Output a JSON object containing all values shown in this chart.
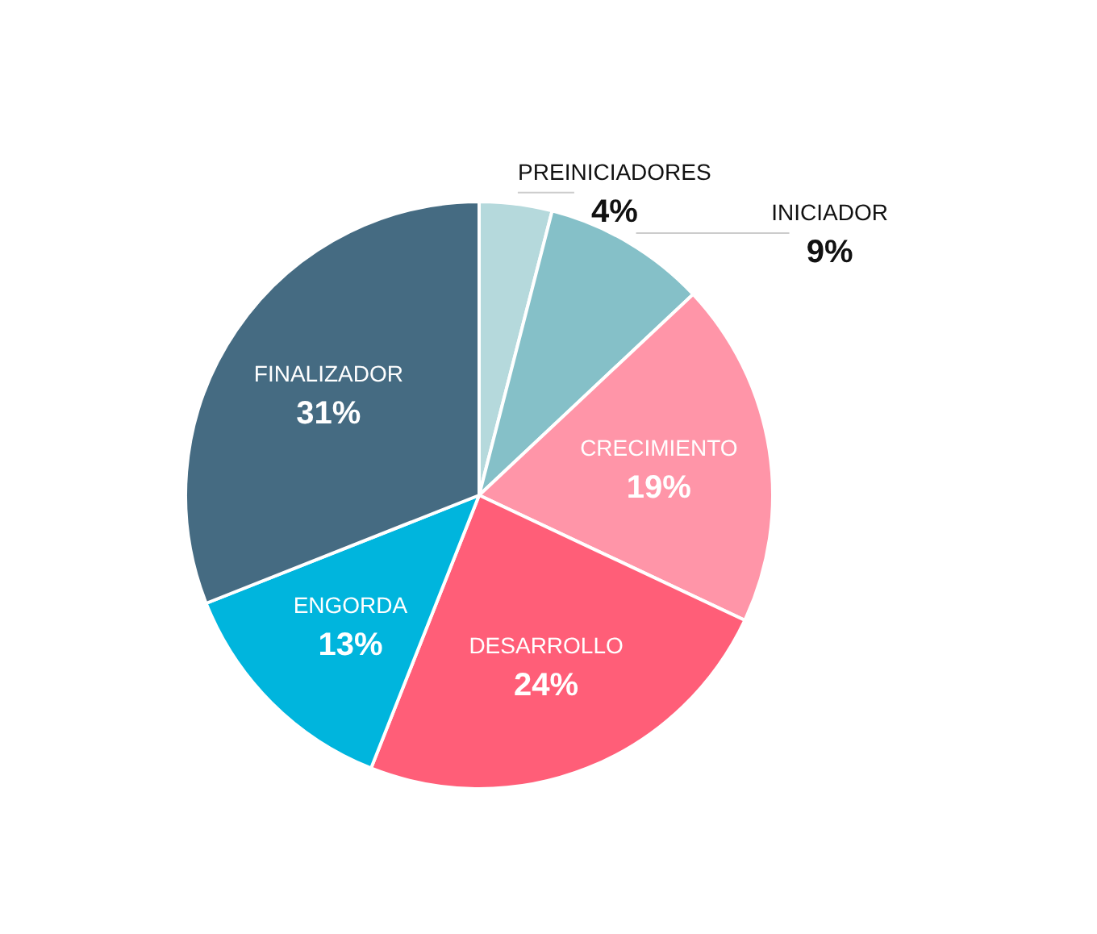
{
  "chart_data": {
    "type": "pie",
    "categories": [
      "PREINICIADORES",
      "INICIADOR",
      "CRECIMIENTO",
      "DESARROLLO",
      "ENGORDA",
      "FINALIZADOR"
    ],
    "values": [
      4,
      9,
      19,
      24,
      13,
      31
    ],
    "colors": [
      "#b5d9dc",
      "#85c0c8",
      "#ff95a8",
      "#ff5e78",
      "#00b5dd",
      "#456b82"
    ],
    "value_labels": [
      "4%",
      "9%",
      "19%",
      "24%",
      "13%",
      "31%"
    ]
  }
}
